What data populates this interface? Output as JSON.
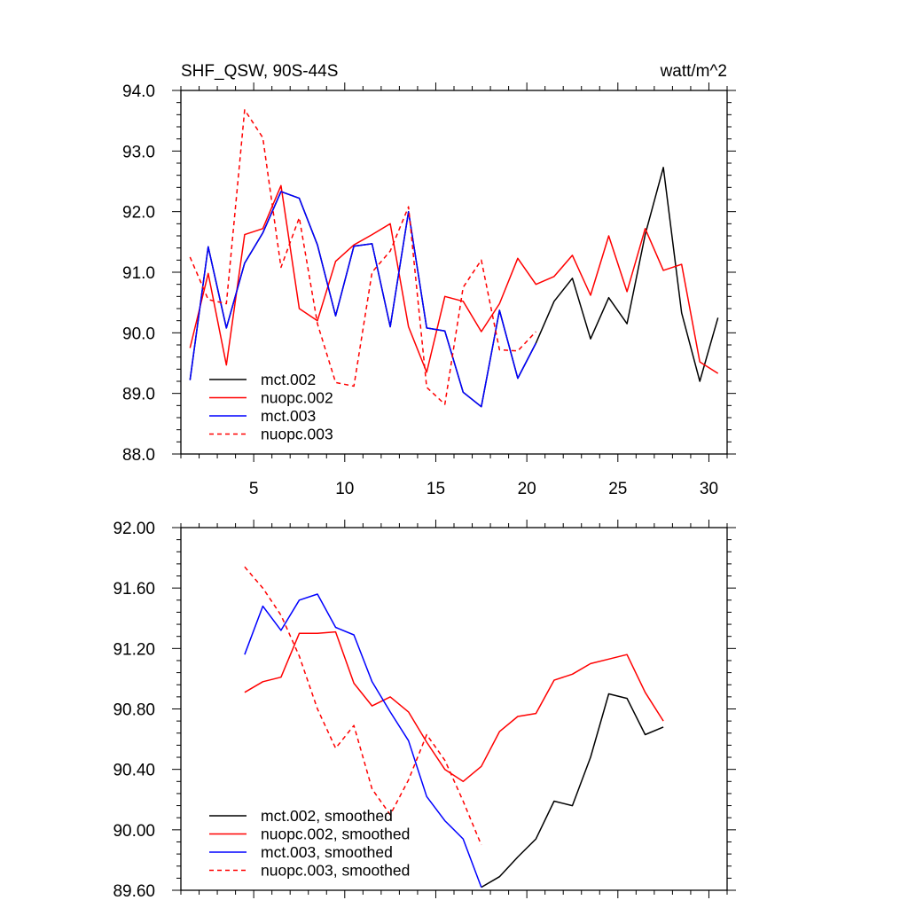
{
  "chart_data": [
    {
      "type": "line",
      "title": "SHF_QSW, 90S-44S",
      "units": "watt/m^2",
      "xlim": [
        1,
        31
      ],
      "ylim": [
        88.0,
        94.0
      ],
      "xticks": [
        5,
        10,
        15,
        20,
        25,
        30
      ],
      "xtick_labels": [
        "5",
        "10",
        "15",
        "20",
        "25",
        "30"
      ],
      "yticks": [
        88.0,
        89.0,
        90.0,
        91.0,
        92.0,
        93.0,
        94.0
      ],
      "ytick_labels": [
        "88.0",
        "89.0",
        "90.0",
        "91.0",
        "92.0",
        "93.0",
        "94.0"
      ],
      "legend_position": "bottom-left",
      "series": [
        {
          "name": "mct.002",
          "color": "#000000",
          "dash": false,
          "x": [
            1.5,
            2.5,
            3.5,
            4.5,
            5.5,
            6.5,
            7.5,
            8.5,
            9.5,
            10.5,
            11.5,
            12.5,
            13.5,
            14.5,
            15.5,
            16.5,
            17.5,
            18.5,
            19.5,
            20.5,
            21.5,
            22.5,
            23.5,
            24.5,
            25.5,
            26.5,
            27.5,
            28.5,
            29.5,
            30.5
          ],
          "values": [
            89.22,
            91.42,
            90.08,
            91.15,
            91.65,
            92.33,
            92.22,
            91.45,
            90.28,
            91.43,
            91.47,
            90.1,
            92.0,
            90.08,
            90.03,
            89.02,
            88.78,
            90.37,
            89.25,
            89.83,
            90.52,
            90.9,
            89.9,
            90.58,
            90.15,
            91.62,
            92.73,
            90.33,
            89.2,
            90.25
          ]
        },
        {
          "name": "nuopc.002",
          "color": "#ff0000",
          "dash": false,
          "x": [
            1.5,
            2.5,
            3.5,
            4.5,
            5.5,
            6.5,
            7.5,
            8.5,
            9.5,
            10.5,
            11.5,
            12.5,
            13.5,
            14.5,
            15.5,
            16.5,
            17.5,
            18.5,
            19.5,
            20.5,
            21.5,
            22.5,
            23.5,
            24.5,
            25.5,
            26.5,
            27.5,
            28.5,
            29.5,
            30.5
          ],
          "values": [
            89.75,
            90.98,
            89.47,
            91.62,
            91.72,
            92.43,
            90.4,
            90.2,
            91.18,
            91.45,
            91.62,
            91.8,
            90.1,
            89.35,
            90.6,
            90.52,
            90.02,
            90.48,
            91.23,
            90.8,
            90.93,
            91.28,
            90.62,
            91.6,
            90.68,
            91.72,
            91.03,
            91.13,
            89.52,
            89.33
          ]
        },
        {
          "name": "mct.003",
          "color": "#0000ff",
          "dash": false,
          "x": [
            1.5,
            2.5,
            3.5,
            4.5,
            5.5,
            6.5,
            7.5,
            8.5,
            9.5,
            10.5,
            11.5,
            12.5,
            13.5,
            14.5,
            15.5,
            16.5,
            17.5,
            18.5,
            19.5,
            20.5
          ],
          "values": [
            89.22,
            91.42,
            90.08,
            91.15,
            91.65,
            92.33,
            92.22,
            91.45,
            90.28,
            91.43,
            91.47,
            90.1,
            92.0,
            90.08,
            90.03,
            89.02,
            88.78,
            90.37,
            89.25,
            89.83
          ]
        },
        {
          "name": "nuopc.003",
          "color": "#ff0000",
          "dash": true,
          "x": [
            1.5,
            2.5,
            3.5,
            4.5,
            5.5,
            6.5,
            7.5,
            8.5,
            9.5,
            10.5,
            11.5,
            12.5,
            13.5,
            14.5,
            15.5,
            16.5,
            17.5,
            18.5,
            19.5,
            20.5
          ],
          "values": [
            91.25,
            90.55,
            90.48,
            93.68,
            93.22,
            91.08,
            91.9,
            90.15,
            89.18,
            89.12,
            91.0,
            91.35,
            92.08,
            89.1,
            88.82,
            90.75,
            91.2,
            89.72,
            89.7,
            90.02
          ]
        }
      ]
    },
    {
      "type": "line",
      "title": "",
      "xlim": [
        1,
        31
      ],
      "ylim": [
        89.6,
        92.0
      ],
      "xticks": [
        5,
        10,
        15,
        20,
        25,
        30
      ],
      "yticks": [
        89.6,
        90.0,
        90.4,
        90.8,
        91.2,
        91.6,
        92.0
      ],
      "ytick_labels": [
        "89.60",
        "90.00",
        "90.40",
        "90.80",
        "91.20",
        "91.60",
        "92.00"
      ],
      "legend_position": "bottom-left",
      "series": [
        {
          "name": "mct.002, smoothed",
          "color": "#000000",
          "dash": false,
          "x": [
            17.5,
            18.5,
            19.5,
            20.5,
            21.5,
            22.5,
            23.5,
            24.5,
            25.5,
            26.5,
            27.5
          ],
          "values": [
            89.62,
            89.69,
            89.82,
            89.94,
            90.19,
            90.16,
            90.48,
            90.9,
            90.87,
            90.63,
            90.68
          ]
        },
        {
          "name": "nuopc.002, smoothed",
          "color": "#ff0000",
          "dash": false,
          "x": [
            4.5,
            5.5,
            6.5,
            7.5,
            8.5,
            9.5,
            10.5,
            11.5,
            12.5,
            13.5,
            14.5,
            15.5,
            16.5,
            17.5,
            18.5,
            19.5,
            20.5,
            21.5,
            22.5,
            23.5,
            24.5,
            25.5,
            26.5,
            27.5
          ],
          "values": [
            90.91,
            90.98,
            91.01,
            91.3,
            91.3,
            91.31,
            90.97,
            90.82,
            90.88,
            90.78,
            90.58,
            90.4,
            90.32,
            90.42,
            90.65,
            90.75,
            90.77,
            90.99,
            91.03,
            91.1,
            91.13,
            91.16,
            90.91,
            90.72
          ]
        },
        {
          "name": "mct.003, smoothed",
          "color": "#0000ff",
          "dash": false,
          "x": [
            4.5,
            5.5,
            6.5,
            7.5,
            8.5,
            9.5,
            10.5,
            11.5,
            12.5,
            13.5,
            14.5,
            15.5,
            16.5,
            17.5
          ],
          "values": [
            91.16,
            91.48,
            91.32,
            91.52,
            91.56,
            91.34,
            91.29,
            90.98,
            90.78,
            90.59,
            90.22,
            90.06,
            89.94,
            89.62
          ]
        },
        {
          "name": "nuopc.003, smoothed",
          "color": "#ff0000",
          "dash": true,
          "x": [
            4.5,
            5.5,
            6.5,
            7.5,
            8.5,
            9.5,
            10.5,
            11.5,
            12.5,
            13.5,
            14.5,
            15.5,
            16.5,
            17.5
          ],
          "values": [
            91.74,
            91.6,
            91.42,
            91.15,
            90.8,
            90.54,
            90.69,
            90.27,
            90.1,
            90.33,
            90.63,
            90.46,
            90.19,
            89.9
          ]
        }
      ]
    }
  ]
}
